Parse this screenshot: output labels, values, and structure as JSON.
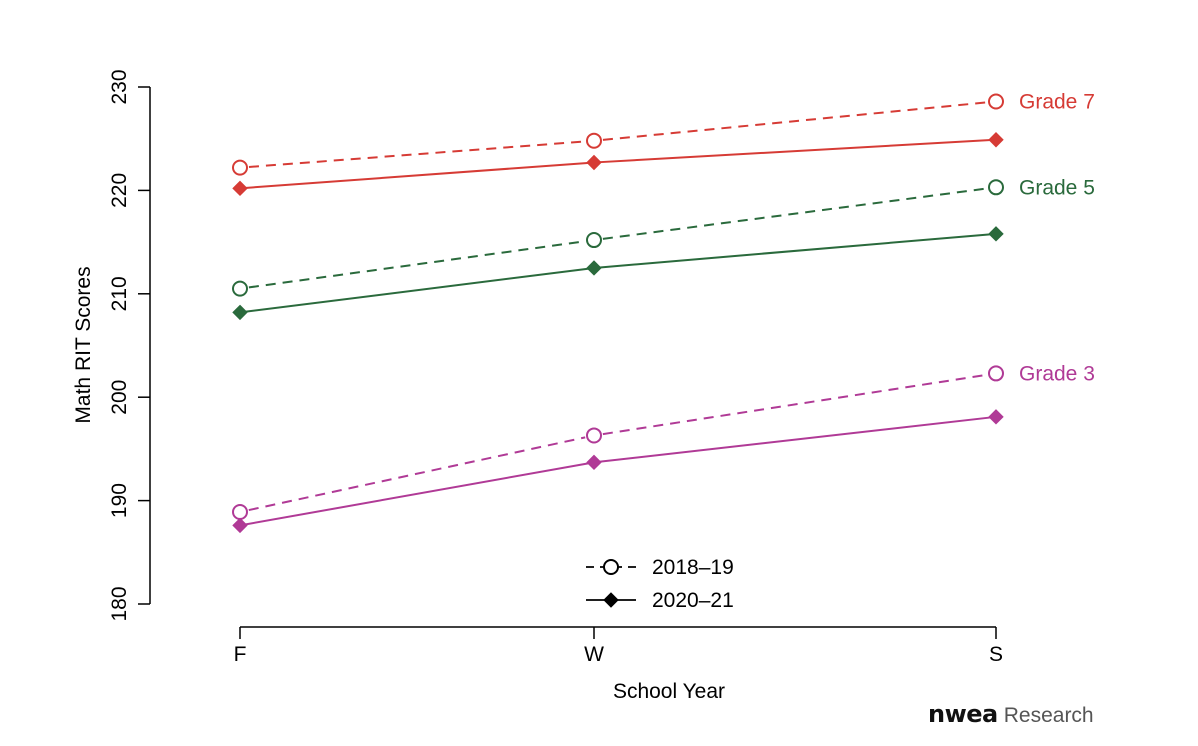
{
  "colors": {
    "grade3": "#b03a96",
    "grade5": "#2a6a3c",
    "grade7": "#d63b35",
    "axis": "#000000"
  },
  "brand": {
    "logo_text": "nwea",
    "suffix": "Research"
  },
  "chart_data": {
    "type": "line",
    "title": "",
    "xlabel": "School Year",
    "ylabel": "Math RIT Scores",
    "categories": [
      "F",
      "W",
      "S"
    ],
    "ylim": [
      180,
      230
    ],
    "yticks": [
      180,
      190,
      200,
      210,
      220,
      230
    ],
    "ytick_labels": [
      "180",
      "190",
      "200",
      "210",
      "220",
      "230"
    ],
    "grid": false,
    "legend": {
      "placement": "bottom-center",
      "entries": [
        {
          "label": "2018–19",
          "line": "dashed",
          "marker": "open-circle"
        },
        {
          "label": "2020–21",
          "line": "solid",
          "marker": "filled-diamond"
        }
      ]
    },
    "series": [
      {
        "grade": "Grade 7",
        "year": "2018–19",
        "color": "#d63b35",
        "line": "dashed",
        "marker": "open-circle",
        "values": [
          222.2,
          224.8,
          228.6
        ]
      },
      {
        "grade": "Grade 7",
        "year": "2020–21",
        "color": "#d63b35",
        "line": "solid",
        "marker": "filled-diamond",
        "values": [
          220.2,
          222.7,
          224.9
        ]
      },
      {
        "grade": "Grade 5",
        "year": "2018–19",
        "color": "#2a6a3c",
        "line": "dashed",
        "marker": "open-circle",
        "values": [
          210.5,
          215.2,
          220.3
        ]
      },
      {
        "grade": "Grade 5",
        "year": "2020–21",
        "color": "#2a6a3c",
        "line": "solid",
        "marker": "filled-diamond",
        "values": [
          208.2,
          212.5,
          215.8
        ]
      },
      {
        "grade": "Grade 3",
        "year": "2018–19",
        "color": "#b03a96",
        "line": "dashed",
        "marker": "open-circle",
        "values": [
          188.9,
          196.3,
          202.3
        ]
      },
      {
        "grade": "Grade 3",
        "year": "2020–21",
        "color": "#b03a96",
        "line": "solid",
        "marker": "filled-diamond",
        "values": [
          187.6,
          193.7,
          198.1
        ]
      }
    ],
    "annotations": [
      {
        "text": "Grade 7",
        "color": "#d63b35",
        "at_value": 228.6
      },
      {
        "text": "Grade 5",
        "color": "#2a6a3c",
        "at_value": 220.3
      },
      {
        "text": "Grade 3",
        "color": "#b03a96",
        "at_value": 202.3
      }
    ]
  }
}
